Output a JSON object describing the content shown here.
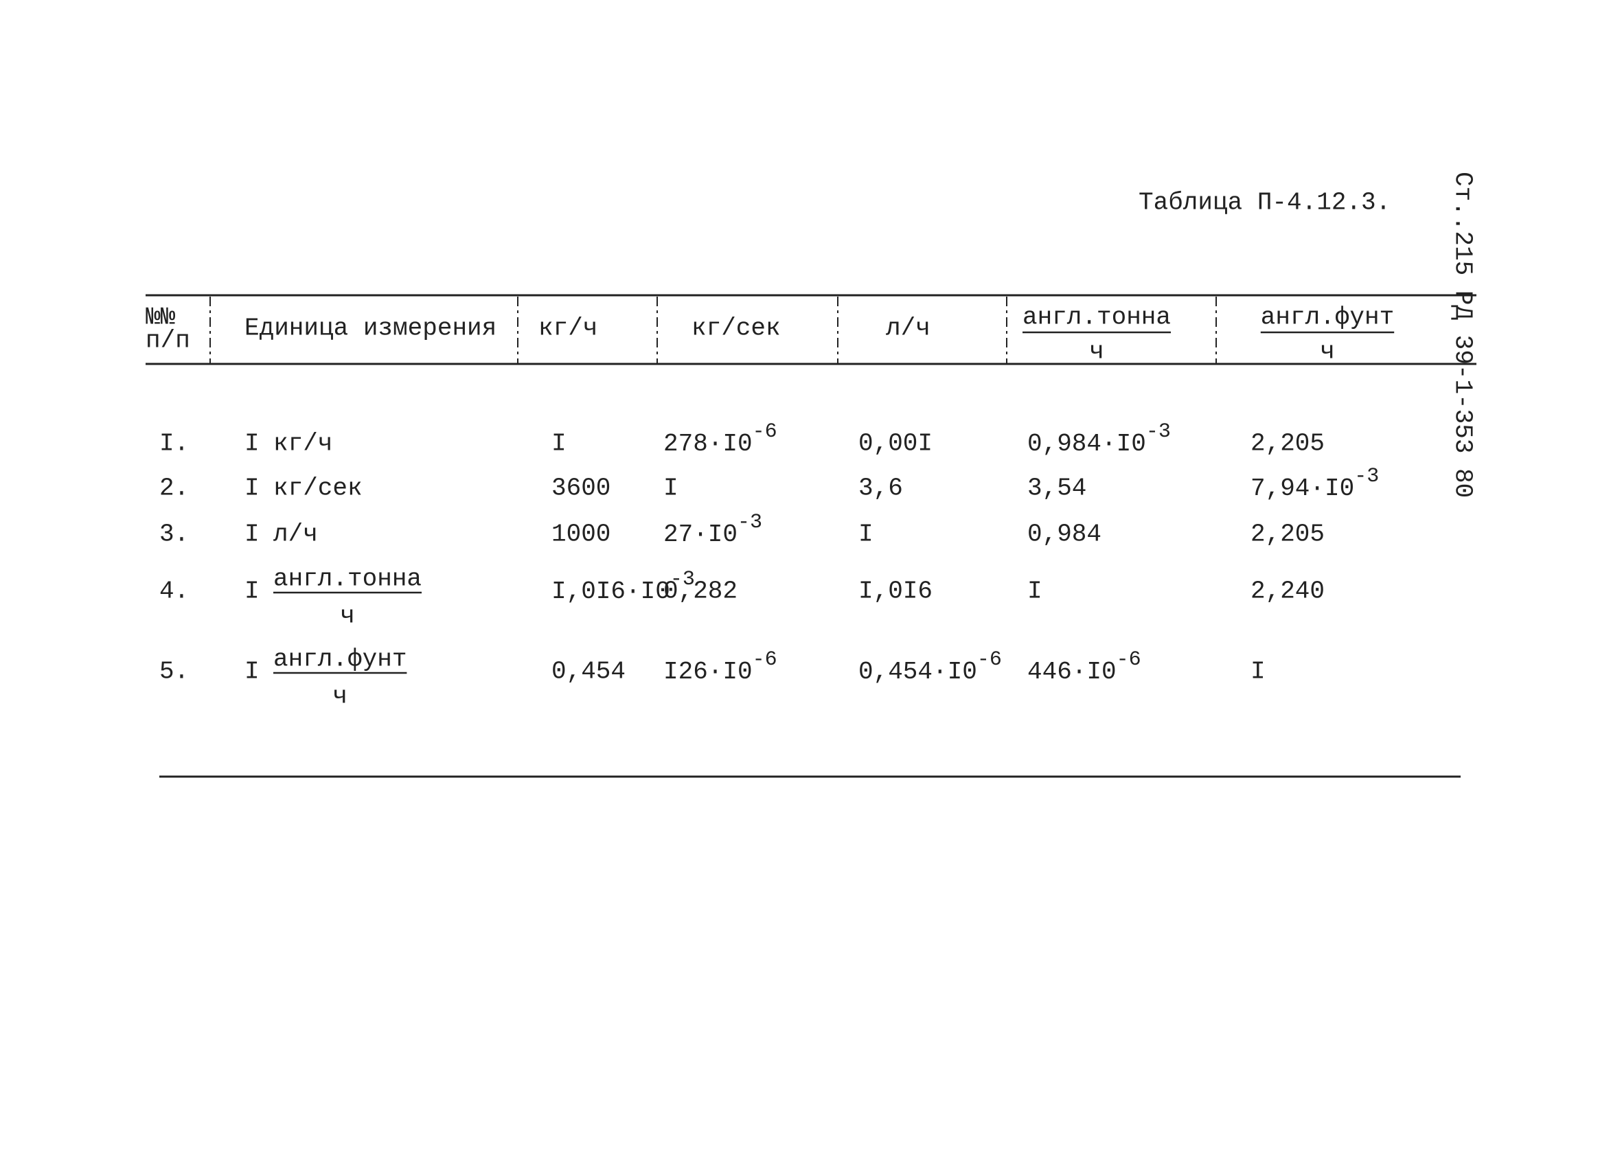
{
  "title": "Таблица П-4.12.3.",
  "side_note": "Ст..215 РД 39-1-353 80",
  "header": {
    "columns": [
      {
        "line1": "№№",
        "line2": "п/п"
      },
      {
        "label": "Единица измерения"
      },
      {
        "label": "кг/ч"
      },
      {
        "label": "кг/сек"
      },
      {
        "label": "л/ч"
      },
      {
        "numerator": "англ.тонна",
        "denominator": "ч"
      },
      {
        "numerator": "англ.фунт",
        "denominator": "ч"
      }
    ]
  },
  "table": {
    "rows": [
      [
        "I.",
        {
          "prefix": "I",
          "text": "кг/ч"
        },
        "I",
        {
          "text": "278·I0",
          "sup": "-6"
        },
        "0,00I",
        {
          "text": "0,984·I0",
          "sup": "-3"
        },
        "2,205"
      ],
      [
        "2.",
        {
          "prefix": "I",
          "text": "кг/сек"
        },
        "3600",
        "I",
        "3,6",
        "3,54",
        {
          "text": "7,94·I0",
          "sup": "-3"
        }
      ],
      [
        "3.",
        {
          "prefix": "I",
          "text": "л/ч"
        },
        "1000",
        {
          "text": "27·I0",
          "sup": "-3"
        },
        "I",
        "0,984",
        "2,205"
      ],
      [
        "4.",
        {
          "prefix": "I",
          "numerator": "англ.тонна",
          "denominator": "ч"
        },
        {
          "text": "I,0I6·I0",
          "sup": "-3"
        },
        "0,282",
        "I,0I6",
        "I",
        "2,240"
      ],
      [
        "5.",
        {
          "prefix": "I",
          "numerator": "англ.фунт",
          "denominator": "ч"
        },
        "0,454",
        {
          "text": "I26·I0",
          "sup": "-6"
        },
        {
          "text": "0,454·I0",
          "sup": "-6"
        },
        {
          "text": "446·I0",
          "sup": "-6"
        },
        "I"
      ]
    ]
  }
}
